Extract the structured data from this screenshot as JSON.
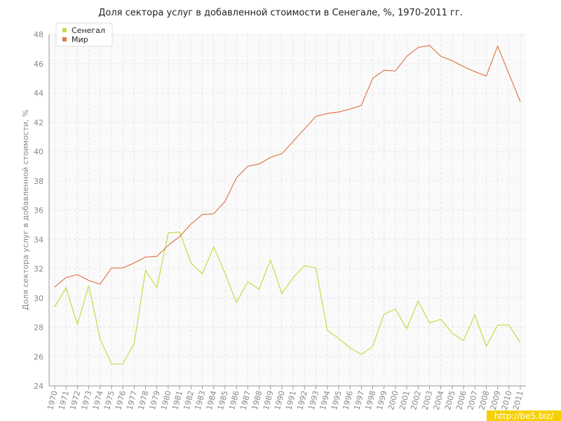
{
  "chart_data": {
    "type": "line",
    "title": "Доля сектора услуг в добавленной стоимости в Сенегале, %, 1970-2011 гг.",
    "y_label": "Доля сектора услуг в добавленной стоимости, %",
    "categories": [
      "1970",
      "1971",
      "1972",
      "1973",
      "1974",
      "1975",
      "1976",
      "1977",
      "1978",
      "1979",
      "1980",
      "1981",
      "1982",
      "1983",
      "1984",
      "1985",
      "1986",
      "1987",
      "1988",
      "1989",
      "1990",
      "1991",
      "1992",
      "1993",
      "1994",
      "1995",
      "1996",
      "1997",
      "1998",
      "1999",
      "2000",
      "2001",
      "2002",
      "2003",
      "2004",
      "2005",
      "2006",
      "2007",
      "2008",
      "2009",
      "2010",
      "2011"
    ],
    "series": [
      {
        "name": "Сенегал",
        "color": "#c2dc4a",
        "values": [
          29.4,
          30.7,
          28.2,
          30.85,
          27.2,
          25.5,
          25.5,
          26.9,
          31.9,
          30.7,
          34.45,
          34.5,
          32.4,
          31.65,
          33.5,
          31.7,
          29.7,
          31.1,
          30.6,
          32.6,
          30.3,
          31.4,
          32.2,
          32.05,
          27.8,
          27.25,
          26.6,
          26.15,
          26.7,
          28.9,
          29.25,
          27.9,
          29.8,
          28.3,
          28.55,
          27.6,
          27.1,
          28.85,
          26.7,
          28.15,
          28.15,
          26.95
        ]
      },
      {
        "name": "Мир",
        "color": "#e07a4c",
        "values": [
          30.75,
          31.4,
          31.6,
          31.2,
          30.95,
          32.05,
          32.05,
          32.4,
          32.8,
          32.85,
          33.6,
          34.2,
          35.05,
          35.7,
          35.75,
          36.6,
          38.2,
          39.0,
          39.15,
          39.6,
          39.85,
          40.7,
          41.55,
          42.4,
          42.6,
          42.7,
          42.9,
          43.15,
          45.0,
          45.55,
          45.5,
          46.5,
          47.1,
          47.25,
          46.5,
          46.2,
          45.8,
          45.45,
          45.15,
          47.2,
          45.3,
          43.4
        ]
      }
    ],
    "ylim": [
      24,
      48
    ],
    "yticks": [
      24,
      26,
      28,
      30,
      32,
      34,
      36,
      38,
      40,
      42,
      44,
      46,
      48
    ],
    "grid": true,
    "legend": "top-left",
    "watermark": "http://be5.biz/"
  }
}
